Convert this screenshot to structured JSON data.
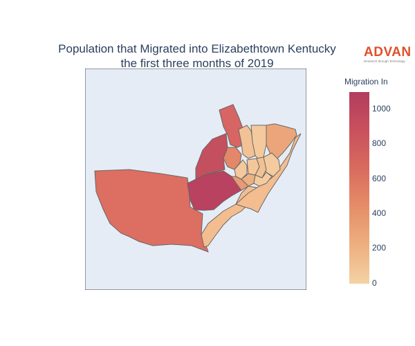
{
  "title": {
    "line1": "Population that Migrated into Elizabethtown Kentucky",
    "line2": "the first three months of 2019"
  },
  "logo": {
    "name": "ADVAN",
    "tagline": "Research through Technology"
  },
  "colorbar": {
    "title": "Migration In",
    "ticks": [
      "1000",
      "800",
      "600",
      "400",
      "200",
      "0"
    ],
    "range": [
      0,
      1100
    ],
    "colorscale": [
      "#f4d2a4",
      "#edb080",
      "#e58e68",
      "#d96b5e",
      "#c9515e",
      "#b23c5e"
    ]
  },
  "map": {
    "background": "#e5ecf6",
    "border_color": "#555555"
  }
}
